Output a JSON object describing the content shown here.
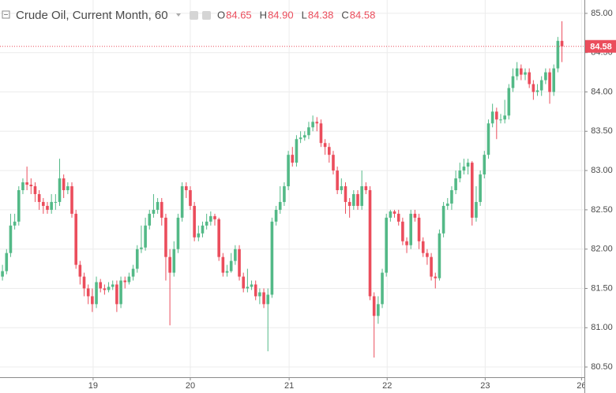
{
  "chart_data": {
    "type": "candlestick",
    "title": "Crude Oil, Current Month, 60",
    "legend": [
      {
        "key": "O",
        "text": "84.65"
      },
      {
        "key": "H",
        "text": "84.90"
      },
      {
        "key": "L",
        "text": "84.38"
      },
      {
        "key": "C",
        "text": "84.58"
      }
    ],
    "up_color": "#53b987",
    "down_color": "#eb4d5c",
    "open": [
      81.65,
      81.72,
      81.95,
      82.3,
      82.35,
      82.75,
      82.85,
      82.82,
      82.8,
      82.7,
      82.6,
      82.55,
      82.5,
      82.6,
      82.6,
      82.9,
      82.75,
      82.8,
      82.45,
      81.8,
      81.65,
      81.5,
      81.4,
      81.3,
      81.58,
      81.5,
      81.48,
      81.52,
      81.55,
      81.3,
      81.6,
      81.58,
      81.65,
      81.75,
      82.0,
      82.02,
      82.3,
      82.45,
      82.5,
      82.6,
      82.4,
      81.9,
      81.7,
      82.0,
      82.4,
      82.8,
      82.75,
      82.55,
      82.15,
      82.2,
      82.3,
      82.35,
      82.42,
      82.38,
      81.9,
      81.7,
      81.72,
      81.85,
      82.0,
      81.65,
      81.5,
      81.52,
      81.55,
      81.4,
      81.45,
      81.3,
      81.42,
      82.35,
      82.5,
      82.6,
      82.8,
      83.2,
      83.1,
      83.4,
      83.42,
      83.45,
      83.55,
      83.62,
      83.6,
      83.35,
      83.3,
      83.2,
      83.0,
      82.75,
      82.8,
      82.6,
      82.55,
      82.7,
      82.55,
      82.8,
      82.75,
      81.4,
      81.15,
      81.3,
      81.7,
      82.4,
      82.48,
      82.45,
      82.35,
      82.1,
      82.05,
      82.45,
      82.4,
      82.1,
      81.95,
      81.9,
      81.65,
      81.63,
      82.2,
      82.55,
      82.58,
      82.75,
      82.9,
      83.0,
      83.05,
      83.1,
      82.4,
      82.6,
      82.95,
      83.2,
      83.6,
      83.75,
      83.65,
      83.65,
      83.7,
      84.05,
      84.2,
      84.3,
      84.22,
      84.25,
      84.1,
      84.0,
      84.02,
      84.15,
      84.25,
      84.0,
      84.3,
      84.65
    ],
    "high": [
      81.8,
      82.0,
      82.45,
      82.45,
      82.8,
      82.9,
      83.05,
      82.9,
      82.85,
      82.75,
      82.65,
      82.6,
      82.7,
      82.7,
      83.15,
      82.95,
      82.85,
      82.85,
      82.5,
      81.85,
      81.7,
      81.55,
      81.5,
      81.65,
      81.62,
      81.55,
      81.58,
      81.6,
      81.6,
      81.65,
      81.65,
      81.7,
      81.8,
      82.05,
      82.3,
      82.4,
      82.5,
      82.7,
      82.65,
      82.65,
      82.45,
      82.0,
      82.1,
      82.45,
      82.85,
      82.85,
      82.8,
      82.6,
      82.3,
      82.35,
      82.45,
      82.48,
      82.45,
      82.4,
      81.95,
      81.8,
      81.95,
      82.05,
      82.05,
      81.7,
      81.75,
      81.6,
      81.6,
      81.5,
      81.5,
      81.5,
      82.4,
      82.55,
      82.8,
      82.85,
      83.25,
      83.3,
      83.45,
      83.5,
      83.5,
      83.62,
      83.7,
      83.68,
      83.65,
      83.4,
      83.35,
      83.25,
      83.05,
      82.9,
      82.85,
      82.65,
      82.75,
      82.75,
      83.0,
      82.85,
      82.8,
      81.45,
      81.4,
      81.75,
      82.45,
      82.5,
      82.5,
      82.5,
      82.4,
      82.15,
      82.5,
      82.5,
      82.45,
      82.15,
      82.0,
      81.95,
      81.7,
      82.25,
      82.6,
      82.65,
      82.8,
      83.0,
      83.1,
      83.15,
      83.15,
      83.12,
      82.8,
      83.0,
      83.25,
      83.65,
      83.85,
      83.8,
      83.72,
      83.9,
      84.1,
      84.3,
      84.38,
      84.35,
      84.3,
      84.3,
      84.15,
      84.1,
      84.2,
      84.3,
      84.3,
      84.35,
      84.7,
      84.9
    ],
    "low": [
      81.6,
      81.68,
      81.9,
      82.25,
      82.3,
      82.7,
      82.75,
      82.7,
      82.6,
      82.5,
      82.45,
      82.45,
      82.45,
      82.5,
      82.55,
      82.65,
      82.7,
      82.4,
      81.75,
      81.55,
      81.4,
      81.3,
      81.2,
      81.25,
      81.45,
      81.42,
      81.45,
      81.48,
      81.2,
      81.25,
      81.5,
      81.55,
      81.6,
      81.7,
      81.95,
      81.98,
      82.25,
      82.4,
      82.45,
      82.3,
      81.6,
      81.03,
      81.65,
      81.95,
      82.35,
      82.65,
      82.5,
      82.1,
      82.1,
      82.15,
      82.25,
      82.3,
      82.3,
      81.85,
      81.65,
      81.65,
      81.7,
      81.8,
      81.6,
      81.45,
      81.45,
      81.48,
      81.35,
      81.3,
      81.25,
      80.7,
      81.38,
      82.3,
      82.45,
      82.55,
      82.75,
      83.05,
      83.05,
      83.35,
      83.38,
      83.4,
      83.5,
      83.5,
      83.3,
      83.2,
      83.1,
      82.95,
      82.7,
      82.7,
      82.45,
      82.4,
      82.5,
      82.5,
      82.5,
      82.7,
      81.35,
      80.62,
      81.05,
      81.25,
      81.65,
      82.35,
      82.4,
      82.3,
      82.05,
      81.95,
      82.0,
      82.35,
      82.0,
      81.9,
      81.8,
      81.6,
      81.5,
      81.6,
      82.15,
      82.5,
      82.5,
      82.7,
      82.85,
      82.95,
      82.95,
      82.3,
      82.35,
      82.55,
      82.9,
      83.15,
      83.55,
      83.4,
      83.6,
      83.6,
      83.65,
      84.0,
      84.15,
      84.15,
      84.15,
      84.05,
      83.9,
      83.95,
      83.95,
      84.1,
      83.85,
      83.95,
      84.25,
      84.38
    ],
    "close": [
      81.72,
      81.95,
      82.3,
      82.35,
      82.75,
      82.85,
      82.82,
      82.8,
      82.7,
      82.6,
      82.55,
      82.5,
      82.6,
      82.6,
      82.9,
      82.75,
      82.8,
      82.45,
      81.8,
      81.65,
      81.5,
      81.4,
      81.3,
      81.58,
      81.5,
      81.48,
      81.52,
      81.55,
      81.3,
      81.6,
      81.58,
      81.65,
      81.75,
      82.0,
      82.02,
      82.3,
      82.45,
      82.5,
      82.6,
      82.4,
      81.9,
      81.7,
      82.0,
      82.4,
      82.8,
      82.75,
      82.55,
      82.15,
      82.2,
      82.3,
      82.35,
      82.42,
      82.38,
      81.9,
      81.7,
      81.72,
      81.85,
      82.0,
      81.65,
      81.5,
      81.52,
      81.55,
      81.4,
      81.45,
      81.3,
      81.42,
      82.35,
      82.5,
      82.6,
      82.8,
      83.2,
      83.1,
      83.4,
      83.42,
      83.45,
      83.55,
      83.62,
      83.6,
      83.35,
      83.3,
      83.2,
      83.0,
      82.75,
      82.8,
      82.6,
      82.55,
      82.7,
      82.55,
      82.8,
      82.75,
      81.4,
      81.15,
      81.3,
      81.7,
      82.4,
      82.48,
      82.45,
      82.35,
      82.1,
      82.05,
      82.45,
      82.4,
      82.1,
      81.95,
      81.9,
      81.65,
      81.63,
      82.2,
      82.55,
      82.58,
      82.75,
      82.9,
      83.0,
      83.05,
      83.1,
      82.4,
      82.6,
      82.95,
      83.2,
      83.6,
      83.75,
      83.65,
      83.65,
      83.7,
      84.05,
      84.2,
      84.3,
      84.22,
      84.25,
      84.1,
      84.0,
      84.02,
      84.15,
      84.25,
      84.0,
      84.3,
      84.65,
      84.58
    ],
    "xlim": [
      -0.6,
      142.5
    ],
    "xticks": [
      {
        "value": 22.2,
        "label": "19"
      },
      {
        "value": 46.0,
        "label": "20"
      },
      {
        "value": 70.2,
        "label": "21"
      },
      {
        "value": 94.2,
        "label": "22"
      },
      {
        "value": 118.2,
        "label": "23"
      },
      {
        "value": 141.8,
        "label": "26"
      }
    ],
    "ylim": [
      80.37,
      85.17
    ],
    "yticks": [
      {
        "value": 80.5,
        "label": "80.50"
      },
      {
        "value": 81,
        "label": "81.00"
      },
      {
        "value": 81.5,
        "label": "81.50"
      },
      {
        "value": 82,
        "label": "82.00"
      },
      {
        "value": 82.5,
        "label": "82.50"
      },
      {
        "value": 83,
        "label": "83.00"
      },
      {
        "value": 83.5,
        "label": "83.50"
      },
      {
        "value": 84,
        "label": "84.00"
      },
      {
        "value": 84.5,
        "label": "84.50"
      },
      {
        "value": 85,
        "label": "85.00"
      }
    ],
    "last_price": {
      "value": 84.58,
      "label": "84.58"
    },
    "grid": true
  }
}
